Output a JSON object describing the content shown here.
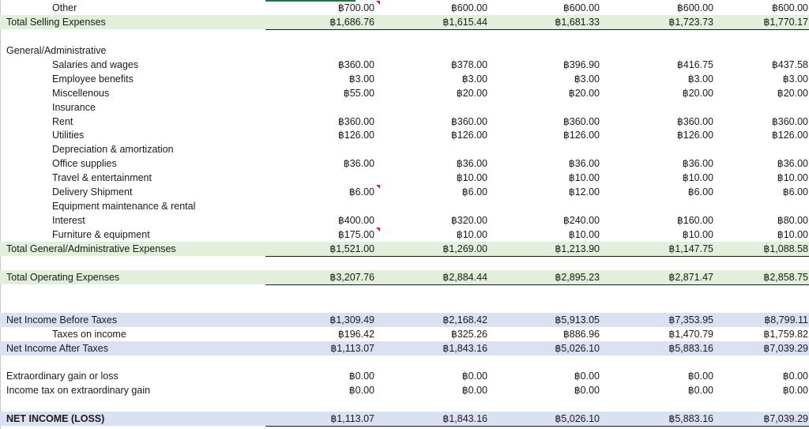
{
  "sheet": {
    "rows": [
      {
        "label": "Other",
        "indent": 2,
        "values": [
          "฿700.00",
          "฿600.00",
          "฿600.00",
          "฿600.00",
          "฿600.00"
        ],
        "comment_col": 0
      },
      {
        "label": "Total Selling Expenses",
        "indent": 1,
        "band": "green",
        "underline": true,
        "values": [
          "฿1,686.76",
          "฿1,615.44",
          "฿1,681.33",
          "฿1,723.73",
          "฿1,770.17"
        ]
      },
      {
        "label": "",
        "values": []
      },
      {
        "label": "General/Administrative",
        "indent": 1,
        "values": []
      },
      {
        "label": "Salaries and wages",
        "indent": 2,
        "values": [
          "฿360.00",
          "฿378.00",
          "฿396.90",
          "฿416.75",
          "฿437.58"
        ]
      },
      {
        "label": "Employee benefits",
        "indent": 2,
        "values": [
          "฿3.00",
          "฿3.00",
          "฿3.00",
          "฿3.00",
          "฿3.00"
        ]
      },
      {
        "label": "Miscellenous",
        "indent": 2,
        "values": [
          "฿55.00",
          "฿20.00",
          "฿20.00",
          "฿20.00",
          "฿20.00"
        ]
      },
      {
        "label": "Insurance",
        "indent": 2,
        "values": []
      },
      {
        "label": "Rent",
        "indent": 2,
        "values": [
          "฿360.00",
          "฿360.00",
          "฿360.00",
          "฿360.00",
          "฿360.00"
        ]
      },
      {
        "label": "Utilities",
        "indent": 2,
        "values": [
          "฿126.00",
          "฿126.00",
          "฿126.00",
          "฿126.00",
          "฿126.00"
        ]
      },
      {
        "label": "Depreciation & amortization",
        "indent": 2,
        "values": []
      },
      {
        "label": "Office supplies",
        "indent": 2,
        "values": [
          "฿36.00",
          "฿36.00",
          "฿36.00",
          "฿36.00",
          "฿36.00"
        ]
      },
      {
        "label": "Travel & entertainment",
        "indent": 2,
        "values": [
          "",
          "฿10.00",
          "฿10.00",
          "฿10.00",
          "฿10.00"
        ]
      },
      {
        "label": "Delivery Shipment",
        "indent": 2,
        "values": [
          "฿6.00",
          "฿6.00",
          "฿12.00",
          "฿6.00",
          "฿6.00"
        ],
        "comment_col": 0
      },
      {
        "label": "Equipment maintenance & rental",
        "indent": 2,
        "values": []
      },
      {
        "label": "Interest",
        "indent": 2,
        "values": [
          "฿400.00",
          "฿320.00",
          "฿240.00",
          "฿160.00",
          "฿80.00"
        ]
      },
      {
        "label": "Furniture & equipment",
        "indent": 2,
        "values": [
          "฿175.00",
          "฿10.00",
          "฿10.00",
          "฿10.00",
          "฿10.00"
        ],
        "comment_col": 0
      },
      {
        "label": "Total General/Administrative Expenses",
        "indent": 1,
        "band": "green",
        "underline": true,
        "values": [
          "฿1,521.00",
          "฿1,269.00",
          "฿1,213.90",
          "฿1,147.75",
          "฿1,088.58"
        ]
      },
      {
        "label": "",
        "values": []
      },
      {
        "label": "Total Operating Expenses",
        "indent": 1,
        "band": "green",
        "underline": true,
        "values": [
          "฿3,207.76",
          "฿2,884.44",
          "฿2,895.23",
          "฿2,871.47",
          "฿2,858.75"
        ]
      },
      {
        "label": "",
        "values": []
      },
      {
        "label": "",
        "values": []
      },
      {
        "label": "Net Income Before Taxes",
        "indent": 1,
        "band": "blue",
        "values": [
          "฿1,309.49",
          "฿2,168.42",
          "฿5,913.05",
          "฿7,353.95",
          "฿8,799.11"
        ]
      },
      {
        "label": "Taxes on income",
        "indent": 2,
        "values": [
          "฿196.42",
          "฿325.26",
          "฿886.96",
          "฿1,470.79",
          "฿1,759.82"
        ]
      },
      {
        "label": "Net Income After Taxes",
        "indent": 1,
        "band": "blue",
        "values": [
          "฿1,113.07",
          "฿1,843.16",
          "฿5,026.10",
          "฿5,883.16",
          "฿7,039.29"
        ]
      },
      {
        "label": "",
        "values": []
      },
      {
        "label": "Extraordinary gain or loss",
        "indent": 1,
        "values": [
          "฿0.00",
          "฿0.00",
          "฿0.00",
          "฿0.00",
          "฿0.00"
        ]
      },
      {
        "label": "Income tax on extraordinary gain",
        "indent": 1,
        "values": [
          "฿0.00",
          "฿0.00",
          "฿0.00",
          "฿0.00",
          "฿0.00"
        ]
      },
      {
        "label": "",
        "values": []
      },
      {
        "label": "NET INCOME (LOSS)",
        "indent": 1,
        "band": "blue",
        "underline": true,
        "bold": true,
        "values": [
          "฿1,113.07",
          "฿1,843.16",
          "฿5,026.10",
          "฿5,883.16",
          "฿7,039.29"
        ]
      }
    ]
  },
  "colors": {
    "green_band": "#e2efda",
    "blue_band": "#d9e1f2",
    "comment_marker": "#e81123",
    "selection_border": "#217346"
  }
}
